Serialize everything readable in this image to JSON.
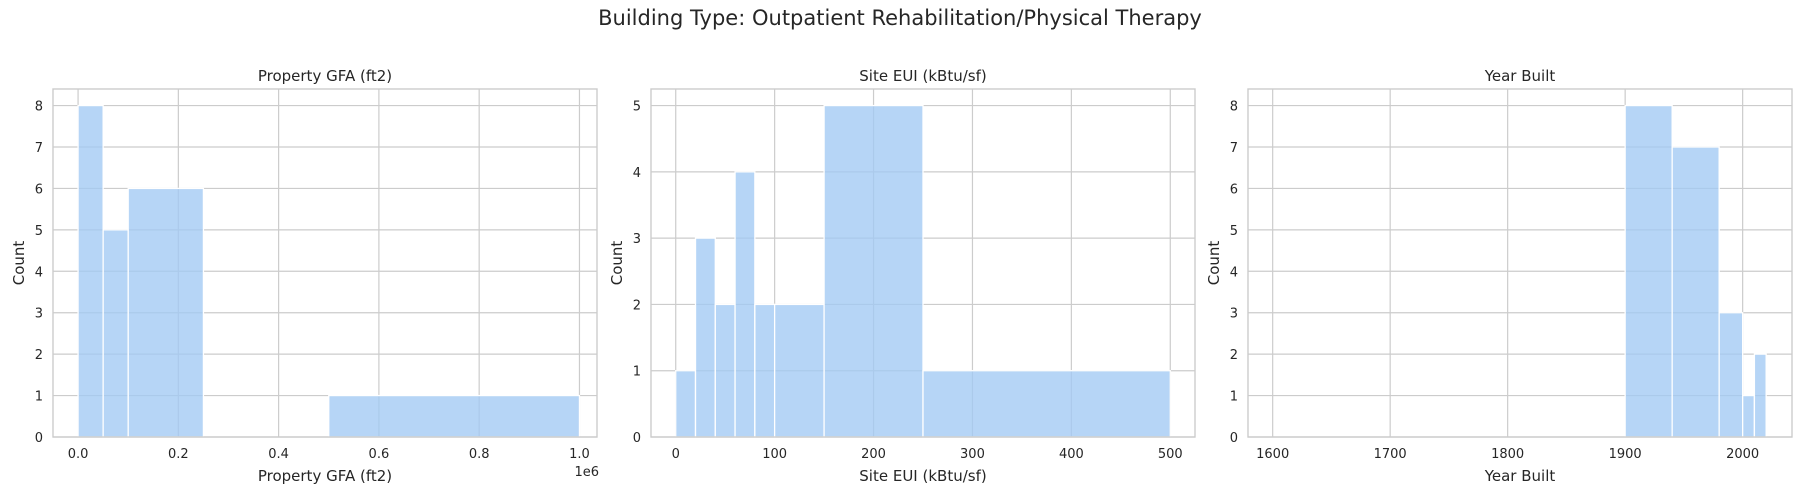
{
  "suptitle": "Building Type: Outpatient Rehabilitation/Physical Therapy",
  "colors": {
    "bar": "#a1c9f4",
    "grid": "#cccccc",
    "text": "#262626"
  },
  "chart_data": [
    {
      "type": "bar",
      "title": "Property GFA (ft2)",
      "xlabel": "Property GFA (ft2)",
      "ylabel": "Count",
      "offset_text": "1e6",
      "xlim": [
        -0.05,
        1.035
      ],
      "ylim": [
        0,
        8.4
      ],
      "xticks": [
        0.0,
        0.2,
        0.4,
        0.6,
        0.8,
        1.0
      ],
      "xtick_labels": [
        "0.0",
        "0.2",
        "0.4",
        "0.6",
        "0.8",
        "1.0"
      ],
      "yticks": [
        0,
        1,
        2,
        3,
        4,
        5,
        6,
        7,
        8
      ],
      "bins": [
        {
          "x0": 0.0,
          "x1": 0.05,
          "count": 8
        },
        {
          "x0": 0.05,
          "x1": 0.1,
          "count": 5
        },
        {
          "x0": 0.1,
          "x1": 0.25,
          "count": 6
        },
        {
          "x0": 0.5,
          "x1": 1.0,
          "count": 1
        }
      ]
    },
    {
      "type": "bar",
      "title": "Site EUI (kBtu/sf)",
      "xlabel": "Site EUI (kBtu/sf)",
      "ylabel": "Count",
      "xlim": [
        -25,
        525
      ],
      "ylim": [
        0,
        5.25
      ],
      "xticks": [
        0,
        100,
        200,
        300,
        400,
        500
      ],
      "xtick_labels": [
        "0",
        "100",
        "200",
        "300",
        "400",
        "500"
      ],
      "yticks": [
        0,
        1,
        2,
        3,
        4,
        5
      ],
      "bins": [
        {
          "x0": 0,
          "x1": 20,
          "count": 1
        },
        {
          "x0": 20,
          "x1": 40,
          "count": 3
        },
        {
          "x0": 40,
          "x1": 60,
          "count": 2
        },
        {
          "x0": 60,
          "x1": 80,
          "count": 4
        },
        {
          "x0": 80,
          "x1": 100,
          "count": 2
        },
        {
          "x0": 100,
          "x1": 150,
          "count": 2
        },
        {
          "x0": 150,
          "x1": 250,
          "count": 5
        },
        {
          "x0": 250,
          "x1": 500,
          "count": 1
        }
      ]
    },
    {
      "type": "bar",
      "title": "Year Built",
      "xlabel": "Year Built",
      "ylabel": "Count",
      "xlim": [
        1579,
        2042
      ],
      "ylim": [
        0,
        8.4
      ],
      "xticks": [
        1600,
        1700,
        1800,
        1900,
        2000
      ],
      "xtick_labels": [
        "1600",
        "1700",
        "1800",
        "1900",
        "2000"
      ],
      "yticks": [
        0,
        1,
        2,
        3,
        4,
        5,
        6,
        7,
        8
      ],
      "bins": [
        {
          "x0": 1900,
          "x1": 1940,
          "count": 8
        },
        {
          "x0": 1940,
          "x1": 1980,
          "count": 7
        },
        {
          "x0": 1980,
          "x1": 2000,
          "count": 3
        },
        {
          "x0": 2000,
          "x1": 2010,
          "count": 1
        },
        {
          "x0": 2010,
          "x1": 2020,
          "count": 2
        }
      ]
    }
  ]
}
